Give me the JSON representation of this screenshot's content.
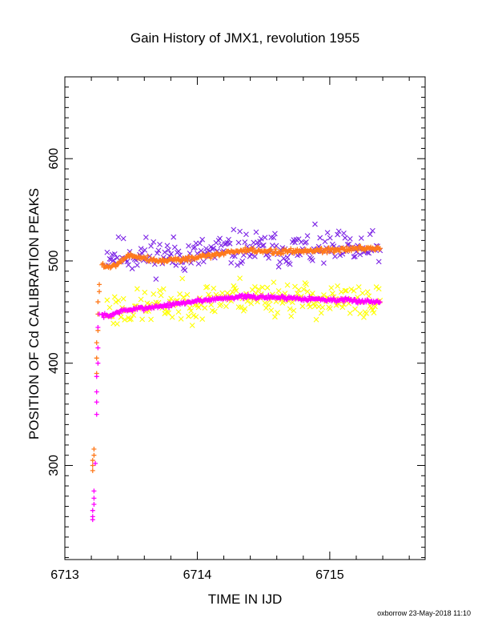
{
  "chart_data": {
    "type": "scatter",
    "title": "Gain History of JMX1, revolution 1955",
    "xlabel": "TIME IN IJD",
    "ylabel": "POSITION OF Cd CALIBRATION PEAKS",
    "xlim": [
      6713.0,
      6715.72
    ],
    "ylim": [
      208,
      680
    ],
    "x_ticks": [
      6713,
      6714,
      6715
    ],
    "y_ticks": [
      300,
      400,
      500,
      600
    ],
    "grid": false,
    "footer": "oxborrow 23-May-2018 11:10",
    "series": [
      {
        "marker": "x",
        "color": "#7b22e6",
        "seed": 11,
        "scatter": 13,
        "x_range": [
          6713.31,
          6715.38
        ],
        "n": 220,
        "trend": [
          [
            6713.31,
            506
          ],
          [
            6714.0,
            506
          ],
          [
            6714.3,
            512
          ],
          [
            6715.0,
            511
          ],
          [
            6715.38,
            510
          ]
        ]
      },
      {
        "marker": "x",
        "color": "#ffff00",
        "seed": 23,
        "scatter": 13,
        "x_range": [
          6713.31,
          6715.38
        ],
        "n": 220,
        "trend": [
          [
            6713.31,
            452
          ],
          [
            6713.6,
            455
          ],
          [
            6714.0,
            460
          ],
          [
            6714.3,
            466
          ],
          [
            6714.7,
            464
          ],
          [
            6715.0,
            461
          ],
          [
            6715.38,
            458
          ]
        ]
      },
      {
        "marker": "plus",
        "color": "#ff7a1c",
        "seed": 5,
        "scatter": 2,
        "x_range": [
          6713.28,
          6715.38
        ],
        "n": 300,
        "trend": [
          [
            6713.28,
            497
          ],
          [
            6713.33,
            493
          ],
          [
            6713.42,
            500
          ],
          [
            6713.5,
            506
          ],
          [
            6713.7,
            500
          ],
          [
            6714.0,
            503
          ],
          [
            6714.3,
            510
          ],
          [
            6714.6,
            509
          ],
          [
            6715.0,
            511
          ],
          [
            6715.38,
            512
          ]
        ]
      },
      {
        "marker": "plus",
        "color": "#ff00ff",
        "seed": 7,
        "scatter": 1.5,
        "x_range": [
          6713.28,
          6715.38
        ],
        "n": 300,
        "trend": [
          [
            6713.28,
            447
          ],
          [
            6713.33,
            446
          ],
          [
            6713.42,
            451
          ],
          [
            6713.6,
            454
          ],
          [
            6713.8,
            457
          ],
          [
            6714.0,
            461
          ],
          [
            6714.3,
            465
          ],
          [
            6714.7,
            464
          ],
          [
            6715.0,
            462
          ],
          [
            6715.38,
            460
          ]
        ]
      },
      {
        "marker": "plus",
        "color": "#ff7a1c",
        "points": [
          [
            6713.21,
            295
          ],
          [
            6713.21,
            300
          ],
          [
            6713.21,
            305
          ],
          [
            6713.22,
            310
          ],
          [
            6713.22,
            316
          ],
          [
            6713.24,
            390
          ],
          [
            6713.24,
            405
          ],
          [
            6713.24,
            420
          ],
          [
            6713.25,
            432
          ],
          [
            6713.25,
            448
          ],
          [
            6713.25,
            460
          ],
          [
            6713.26,
            470
          ],
          [
            6713.26,
            477
          ]
        ]
      },
      {
        "marker": "plus",
        "color": "#ff00ff",
        "points": [
          [
            6713.21,
            247
          ],
          [
            6713.21,
            250
          ],
          [
            6713.21,
            256
          ],
          [
            6713.22,
            262
          ],
          [
            6713.22,
            268
          ],
          [
            6713.22,
            275
          ],
          [
            6713.23,
            302
          ],
          [
            6713.24,
            350
          ],
          [
            6713.24,
            362
          ],
          [
            6713.24,
            372
          ],
          [
            6713.24,
            387
          ],
          [
            6713.25,
            400
          ],
          [
            6713.25,
            415
          ],
          [
            6713.25,
            435
          ],
          [
            6713.26,
            448
          ]
        ]
      }
    ]
  }
}
